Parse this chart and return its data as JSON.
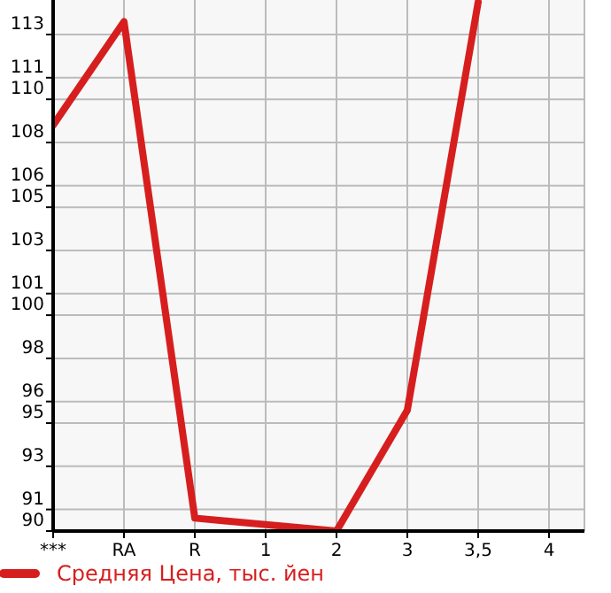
{
  "chart_data": {
    "type": "line",
    "categories": [
      "***",
      "RA",
      "R",
      "1",
      "2",
      "3",
      "3,5",
      "4"
    ],
    "series": [
      {
        "name": "Средняя Цена, тыс. йен",
        "color": "#d71e1e",
        "values": [
          108.8,
          113.6,
          90.6,
          null,
          90.0,
          95.6,
          114.5,
          null
        ]
      }
    ],
    "ylim": [
      90,
      114.6
    ],
    "yticks": [
      90,
      91,
      93,
      95,
      96,
      98,
      100,
      101,
      103,
      105,
      106,
      108,
      110,
      111,
      113
    ],
    "grid": true,
    "legend": "bottom",
    "marker": "none",
    "line_style": "solid"
  }
}
